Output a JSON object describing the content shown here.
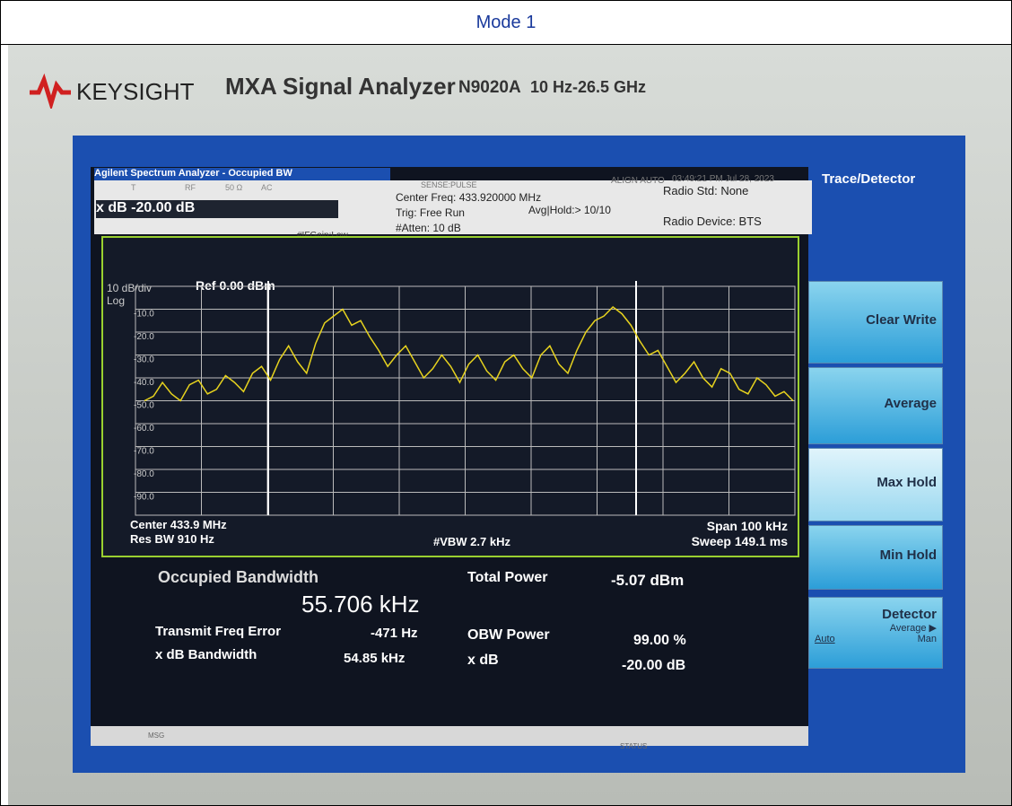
{
  "header": {
    "title": "Mode 1"
  },
  "instrument": {
    "brand": "KEYSIGHT",
    "model": "MXA Signal Analyzer",
    "number": "N9020A",
    "range": "10 Hz-26.5 GHz"
  },
  "screen": {
    "title": "Agilent Spectrum Analyzer - Occupied BW",
    "flags": [
      "T",
      "RF",
      "50 Ω",
      "AC"
    ],
    "sense": "SENSE:PULSE",
    "align": "ALIGN AUTO",
    "datetime": "03:49:21 PM Jul 28, 2023",
    "xdb": "x dB -20.00 dB",
    "ifgain": "#IFGain:Low",
    "center_freq": "Center Freq: 433.920000 MHz",
    "trig": "Trig: Free Run",
    "avg_hold": "Avg|Hold:> 10/10",
    "atten": "#Atten: 10 dB",
    "radio_std": "Radio Std: None",
    "radio_device": "Radio Device: BTS",
    "scale": "10 dB/div",
    "log": "Log",
    "ref": "Ref 0.00 dBm",
    "center": "Center 433.9 MHz",
    "res_bw": "Res BW 910 Hz",
    "vbw": "#VBW 2.7 kHz",
    "span": "Span 100 kHz",
    "sweep": "Sweep 149.1 ms",
    "msg": "MSG",
    "status": "STATUS"
  },
  "results": {
    "obw_label": "Occupied Bandwidth",
    "obw_value": "55.706 kHz",
    "total_power_label": "Total Power",
    "total_power_value": "-5.07 dBm",
    "freq_error_label": "Transmit Freq Error",
    "freq_error_value": "-471 Hz",
    "obw_power_label": "OBW Power",
    "obw_power_value": "99.00 %",
    "xdb_bw_label": "x dB Bandwidth",
    "xdb_bw_value": "54.85 kHz",
    "xdb_label": "x dB",
    "xdb_value": "-20.00 dB"
  },
  "softkeys": {
    "title": "Trace/Detector",
    "keys": [
      "Clear Write",
      "Average",
      "Max Hold",
      "Min Hold"
    ],
    "detector": "Detector",
    "detector_value": "Average ▶",
    "auto": "Auto",
    "man": "Man"
  },
  "chart_data": {
    "type": "line",
    "ylim": [
      -100,
      0
    ],
    "grid": true,
    "yticks": [
      {
        "value": -10,
        "label": "-10.0"
      },
      {
        "value": -20,
        "label": "-20.0"
      },
      {
        "value": -30,
        "label": "-30.0"
      },
      {
        "value": -40,
        "label": "-40.0"
      },
      {
        "value": -50,
        "label": "-50.0"
      },
      {
        "value": -60,
        "label": "-60.0"
      },
      {
        "value": -70,
        "label": "-70.0"
      },
      {
        "value": -80,
        "label": "-80.0"
      },
      {
        "value": -90,
        "label": "-90.0"
      }
    ],
    "series": [
      {
        "color": "#e6d21e",
        "values": [
          -50,
          -48,
          -42,
          -47,
          -50,
          -43,
          -41,
          -47,
          -45,
          -39,
          -42,
          -46,
          -38,
          -35,
          -41,
          -32,
          -26,
          -33,
          -38,
          -25,
          -16,
          -13,
          -10,
          -17,
          -15,
          -22,
          -28,
          -35,
          -30,
          -26,
          -33,
          -40,
          -36,
          -30,
          -35,
          -42,
          -34,
          -30,
          -37,
          -41,
          -33,
          -30,
          -36,
          -40,
          -30,
          -26,
          -34,
          -38,
          -28,
          -20,
          -15,
          -13,
          -9,
          -12,
          -17,
          -24,
          -30,
          -28,
          -35,
          -42,
          -38,
          -33,
          -40,
          -44,
          -36,
          -38,
          -45,
          -47,
          -40,
          -43,
          -48,
          -46,
          -50
        ]
      }
    ]
  }
}
